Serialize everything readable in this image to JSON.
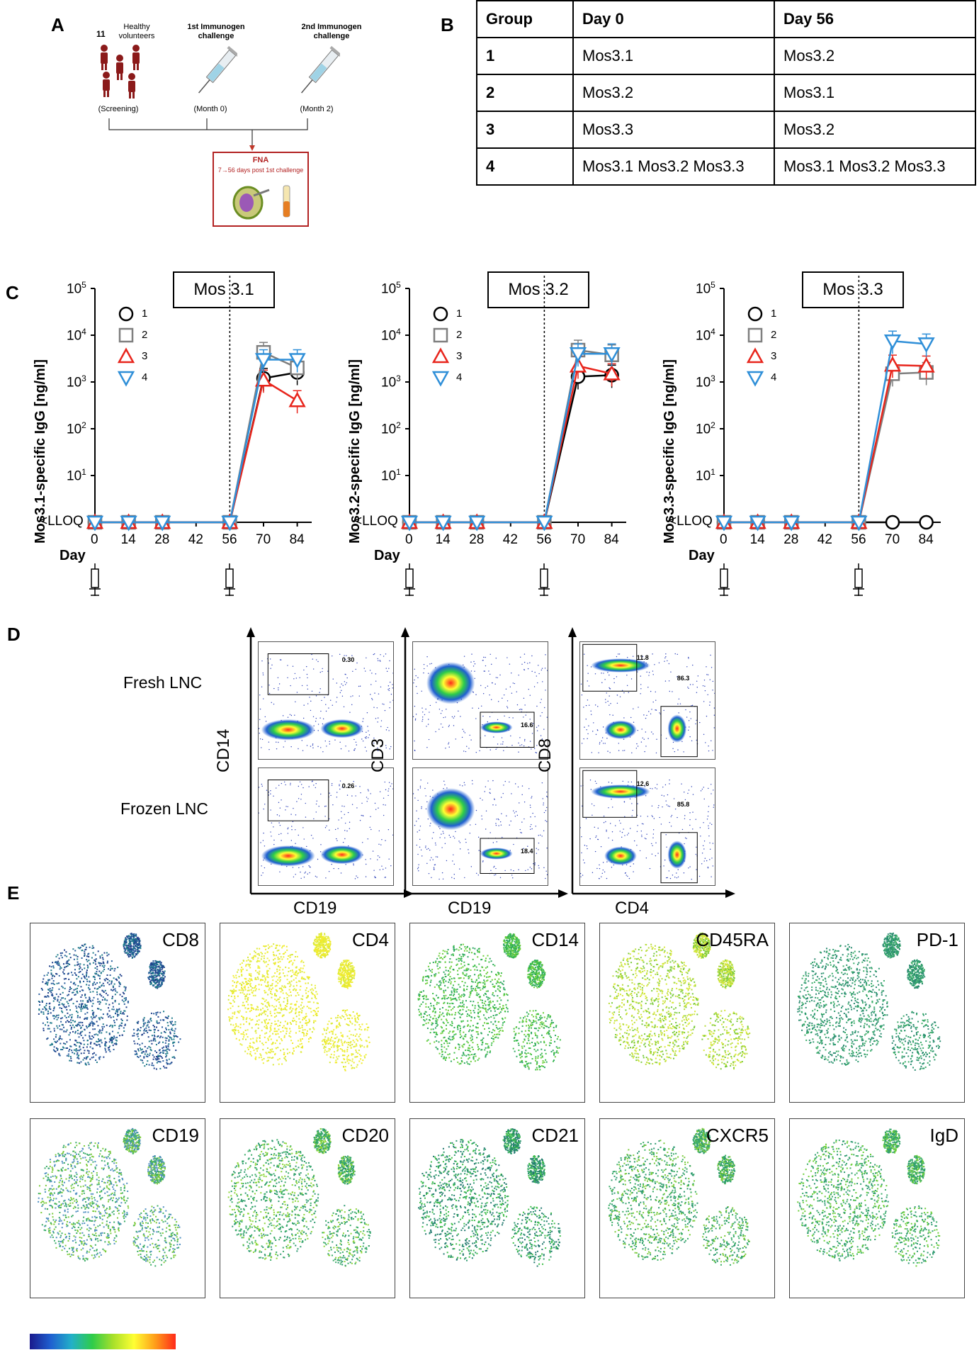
{
  "panels": {
    "a": "A",
    "b": "B",
    "c": "C",
    "d": "D",
    "e": "E"
  },
  "panel_a": {
    "count": "11",
    "volunteers": "Healthy volunteers",
    "screening": "(Screening)",
    "first_challenge": "1st Immunogen challenge",
    "first_time": "(Month 0)",
    "second_challenge": "2nd Immunogen challenge",
    "second_time": "(Month 2)",
    "fna_title": "FNA",
    "fna_sub": "7→56 days post 1st challenge"
  },
  "panel_b": {
    "headers": [
      "Group",
      "Day 0",
      "Day 56"
    ],
    "rows": [
      [
        "1",
        "Mos3.1",
        "Mos3.2"
      ],
      [
        "2",
        "Mos3.2",
        "Mos3.1"
      ],
      [
        "3",
        "Mos3.3",
        "Mos3.2"
      ],
      [
        "4",
        "Mos3.1 Mos3.2 Mos3.3",
        "Mos3.1 Mos3.2 Mos3.3"
      ]
    ]
  },
  "colors": {
    "g1": "#000000",
    "g2": "#7f7f7f",
    "g3": "#e8251c",
    "g4": "#2f8fd8"
  },
  "chart_data": [
    {
      "type": "line",
      "title": "Mos 3.1",
      "ylabel": "Mos3.1-specific IgG [ng/ml]",
      "xlabel": "Day",
      "x": [
        0,
        14,
        28,
        56,
        70,
        84
      ],
      "yticks": [
        "<LLOQ",
        "10",
        "10",
        "10",
        "10",
        "10"
      ],
      "ytick_exp": [
        "",
        "1",
        "2",
        "3",
        "4",
        "5"
      ],
      "legend": [
        "1",
        "2",
        "3",
        "4"
      ],
      "series": [
        {
          "name": "1",
          "values": [
            null,
            null,
            null,
            null,
            1200,
            1600
          ]
        },
        {
          "name": "2",
          "values": [
            null,
            null,
            null,
            null,
            4300,
            2000
          ]
        },
        {
          "name": "3",
          "values": [
            null,
            null,
            null,
            null,
            1100,
            400
          ]
        },
        {
          "name": "4",
          "values": [
            null,
            null,
            null,
            null,
            3000,
            3000
          ]
        }
      ]
    },
    {
      "type": "line",
      "title": "Mos 3.2",
      "ylabel": "Mos3.2-specific IgG [ng/ml]",
      "xlabel": "Day",
      "x": [
        0,
        14,
        28,
        56,
        70,
        84
      ],
      "yticks": [
        "<LLOQ",
        "10",
        "10",
        "10",
        "10",
        "10"
      ],
      "ytick_exp": [
        "",
        "1",
        "2",
        "3",
        "4",
        "5"
      ],
      "legend": [
        "1",
        "2",
        "3",
        "4"
      ],
      "series": [
        {
          "name": "1",
          "values": [
            null,
            null,
            null,
            null,
            1300,
            1400
          ]
        },
        {
          "name": "2",
          "values": [
            null,
            null,
            null,
            null,
            4800,
            3800
          ]
        },
        {
          "name": "3",
          "values": [
            null,
            null,
            null,
            null,
            2200,
            1500
          ]
        },
        {
          "name": "4",
          "values": [
            null,
            null,
            null,
            null,
            4000,
            4000
          ]
        }
      ]
    },
    {
      "type": "line",
      "title": "Mos 3.3",
      "ylabel": "Mos3.3-specific IgG [ng/ml]",
      "xlabel": "Day",
      "x": [
        0,
        14,
        28,
        56,
        70,
        84
      ],
      "yticks": [
        "<LLOQ",
        "10",
        "10",
        "10",
        "10",
        "10"
      ],
      "ytick_exp": [
        "",
        "1",
        "2",
        "3",
        "4",
        "5"
      ],
      "legend": [
        "1",
        "2",
        "3",
        "4"
      ],
      "series": [
        {
          "name": "1",
          "values": [
            null,
            null,
            null,
            null,
            null,
            null
          ]
        },
        {
          "name": "2",
          "values": [
            null,
            null,
            null,
            null,
            1500,
            1600
          ]
        },
        {
          "name": "3",
          "values": [
            null,
            null,
            null,
            null,
            2300,
            2200
          ]
        },
        {
          "name": "4",
          "values": [
            null,
            null,
            null,
            null,
            7500,
            6500
          ]
        }
      ]
    }
  ],
  "panel_d": {
    "row_labels": [
      "Fresh LNC",
      "Frozen LNC"
    ],
    "y_labels": [
      "CD14",
      "CD3",
      "CD8"
    ],
    "x_labels": [
      "CD19",
      "CD19",
      "CD4"
    ],
    "fresh_gates": [
      "0.30",
      "16.6",
      "11.8",
      "86.3"
    ],
    "frozen_gates": [
      "0.26",
      "18.4",
      "12.6",
      "85.8"
    ]
  },
  "panel_e": {
    "markers_row1": [
      "CD8",
      "CD4",
      "CD14",
      "CD45RA",
      "PD-1"
    ],
    "markers_row2": [
      "CD19",
      "CD20",
      "CD21",
      "CXCR5",
      "IgD"
    ]
  }
}
